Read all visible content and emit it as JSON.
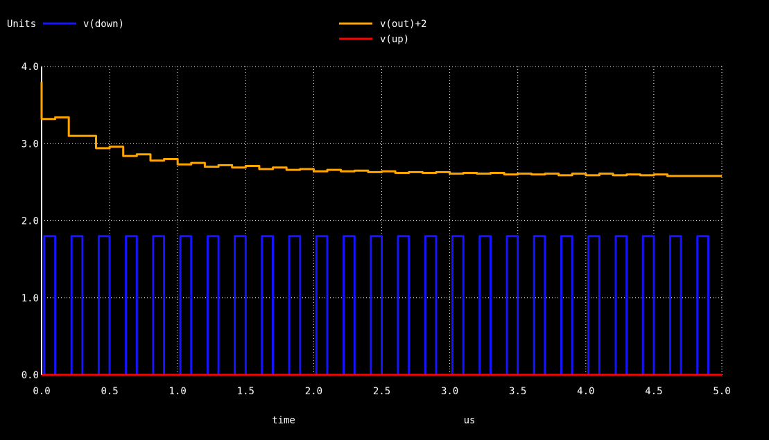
{
  "header": {
    "units_label": "Units"
  },
  "chart_data": {
    "type": "line",
    "xlabel": "time",
    "xunit": "us",
    "ylabel": "Units",
    "xlim": [
      0,
      5.0
    ],
    "ylim": [
      0,
      4.0
    ],
    "grid": true,
    "xticks": [
      "0.0",
      "0.5",
      "1.0",
      "1.5",
      "2.0",
      "2.5",
      "3.0",
      "3.5",
      "4.0",
      "4.5",
      "5.0"
    ],
    "yticks": [
      "0.0",
      "1.0",
      "2.0",
      "3.0",
      "4.0"
    ],
    "background": "#000000",
    "grid_color": "#ffffff",
    "series": [
      {
        "name": "v(down)",
        "color": "#1414ff",
        "kind": "pulse",
        "low": 0.0,
        "high": 1.8,
        "period_us": 0.2,
        "high_start_us": 0.02,
        "high_end_us": 0.1
      },
      {
        "name": "v(out)+2",
        "color": "#ffa500",
        "kind": "step",
        "points": [
          [
            0.0,
            3.8
          ],
          [
            0.0,
            3.32
          ],
          [
            0.1,
            3.32
          ],
          [
            0.1,
            3.34
          ],
          [
            0.2,
            3.34
          ],
          [
            0.2,
            3.1
          ],
          [
            0.3,
            3.1
          ],
          [
            0.3,
            3.1
          ],
          [
            0.4,
            3.1
          ],
          [
            0.4,
            2.94
          ],
          [
            0.5,
            2.94
          ],
          [
            0.5,
            2.96
          ],
          [
            0.6,
            2.96
          ],
          [
            0.6,
            2.84
          ],
          [
            0.7,
            2.84
          ],
          [
            0.7,
            2.86
          ],
          [
            0.8,
            2.86
          ],
          [
            0.8,
            2.78
          ],
          [
            0.9,
            2.78
          ],
          [
            0.9,
            2.8
          ],
          [
            1.0,
            2.8
          ],
          [
            1.0,
            2.73
          ],
          [
            1.1,
            2.73
          ],
          [
            1.1,
            2.75
          ],
          [
            1.2,
            2.75
          ],
          [
            1.2,
            2.7
          ],
          [
            1.3,
            2.7
          ],
          [
            1.3,
            2.72
          ],
          [
            1.4,
            2.72
          ],
          [
            1.4,
            2.69
          ],
          [
            1.5,
            2.69
          ],
          [
            1.5,
            2.71
          ],
          [
            1.6,
            2.71
          ],
          [
            1.6,
            2.67
          ],
          [
            1.7,
            2.67
          ],
          [
            1.7,
            2.69
          ],
          [
            1.8,
            2.69
          ],
          [
            1.8,
            2.66
          ],
          [
            1.9,
            2.66
          ],
          [
            1.9,
            2.67
          ],
          [
            2.0,
            2.67
          ],
          [
            2.0,
            2.64
          ],
          [
            2.1,
            2.64
          ],
          [
            2.1,
            2.66
          ],
          [
            2.2,
            2.66
          ],
          [
            2.2,
            2.64
          ],
          [
            2.3,
            2.64
          ],
          [
            2.3,
            2.65
          ],
          [
            2.4,
            2.65
          ],
          [
            2.4,
            2.63
          ],
          [
            2.5,
            2.63
          ],
          [
            2.5,
            2.64
          ],
          [
            2.6,
            2.64
          ],
          [
            2.6,
            2.62
          ],
          [
            2.7,
            2.62
          ],
          [
            2.7,
            2.63
          ],
          [
            2.8,
            2.63
          ],
          [
            2.8,
            2.62
          ],
          [
            2.9,
            2.62
          ],
          [
            2.9,
            2.63
          ],
          [
            3.0,
            2.63
          ],
          [
            3.0,
            2.61
          ],
          [
            3.1,
            2.61
          ],
          [
            3.1,
            2.62
          ],
          [
            3.2,
            2.62
          ],
          [
            3.2,
            2.61
          ],
          [
            3.3,
            2.61
          ],
          [
            3.3,
            2.62
          ],
          [
            3.4,
            2.62
          ],
          [
            3.4,
            2.6
          ],
          [
            3.5,
            2.6
          ],
          [
            3.5,
            2.61
          ],
          [
            3.6,
            2.61
          ],
          [
            3.6,
            2.6
          ],
          [
            3.7,
            2.6
          ],
          [
            3.7,
            2.61
          ],
          [
            3.8,
            2.61
          ],
          [
            3.8,
            2.59
          ],
          [
            3.9,
            2.59
          ],
          [
            3.9,
            2.61
          ],
          [
            4.0,
            2.61
          ],
          [
            4.0,
            2.59
          ],
          [
            4.1,
            2.59
          ],
          [
            4.1,
            2.61
          ],
          [
            4.2,
            2.61
          ],
          [
            4.2,
            2.59
          ],
          [
            4.3,
            2.59
          ],
          [
            4.3,
            2.6
          ],
          [
            4.4,
            2.6
          ],
          [
            4.4,
            2.59
          ],
          [
            4.5,
            2.59
          ],
          [
            4.5,
            2.6
          ],
          [
            4.6,
            2.6
          ],
          [
            4.6,
            2.58
          ],
          [
            5.0,
            2.58
          ]
        ]
      },
      {
        "name": "v(up)",
        "color": "#ff0000",
        "kind": "line",
        "points": [
          [
            0.0,
            0.0
          ],
          [
            5.0,
            0.0
          ]
        ]
      }
    ]
  }
}
